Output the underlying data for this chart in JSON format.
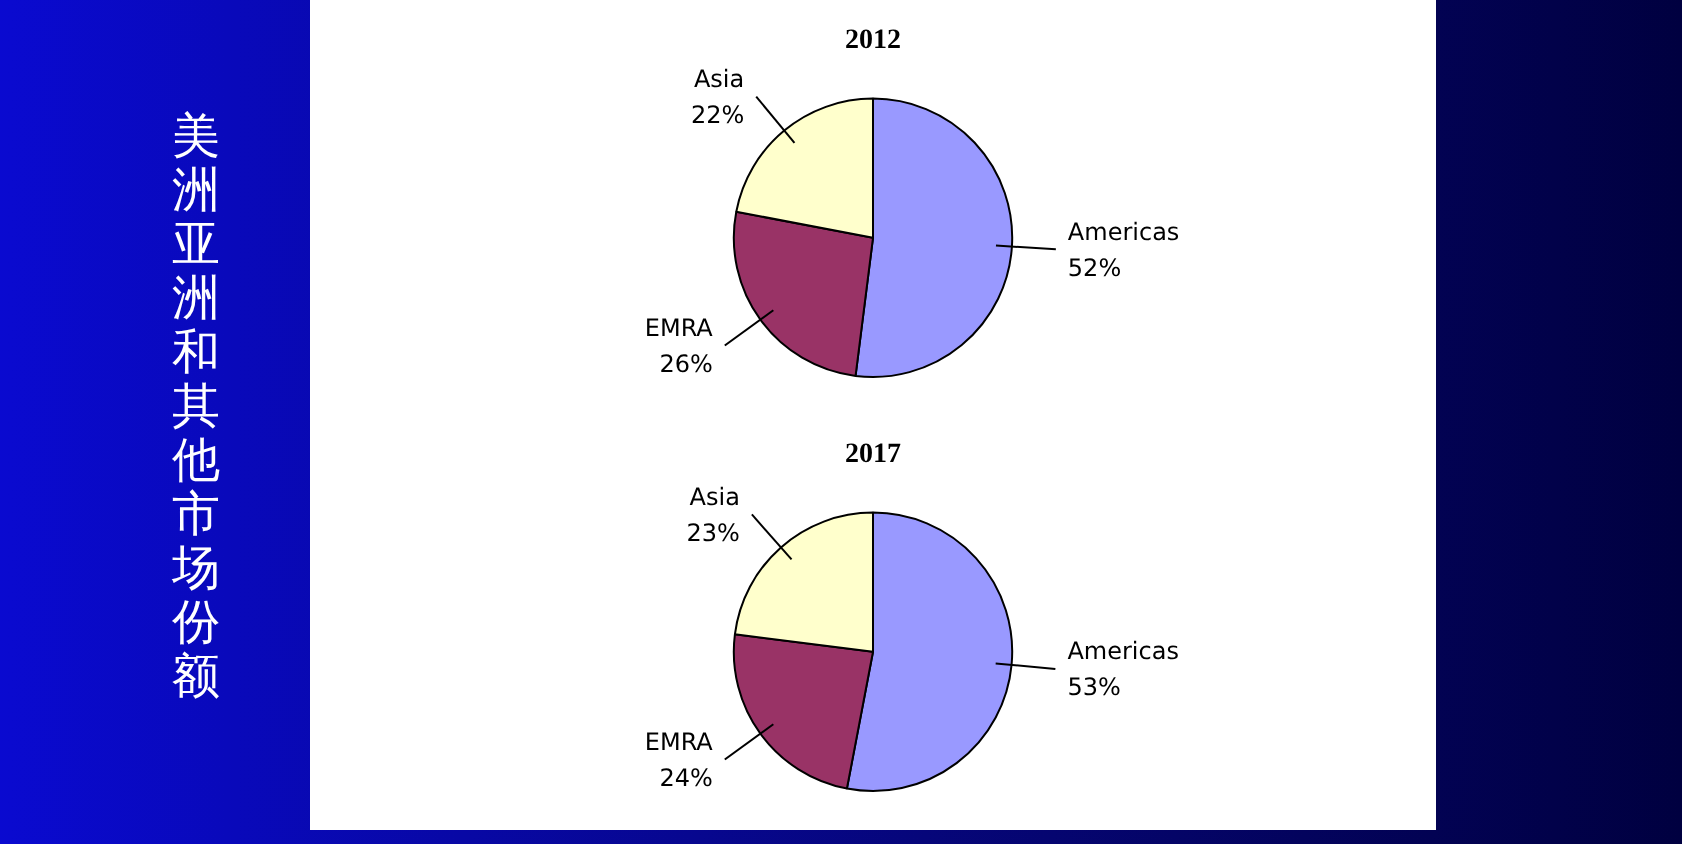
{
  "chart_data": [
    {
      "type": "other",
      "title": "美洲亚洲和其他市场份额"
    },
    {
      "type": "pie",
      "title": "2012",
      "categories": [
        "Americas",
        "EMRA",
        "Asia"
      ],
      "values": [
        52,
        26,
        22
      ],
      "value_labels": [
        "52%",
        "26%",
        "22%"
      ],
      "colors": [
        "#9999ff",
        "#993366",
        "#ffffcc"
      ]
    },
    {
      "type": "pie",
      "title": "2017",
      "categories": [
        "Americas",
        "EMRA",
        "Asia"
      ],
      "values": [
        53,
        24,
        23
      ],
      "value_labels": [
        "53%",
        "24%",
        "23%"
      ],
      "colors": [
        "#9999ff",
        "#993366",
        "#ffffcc"
      ]
    }
  ]
}
